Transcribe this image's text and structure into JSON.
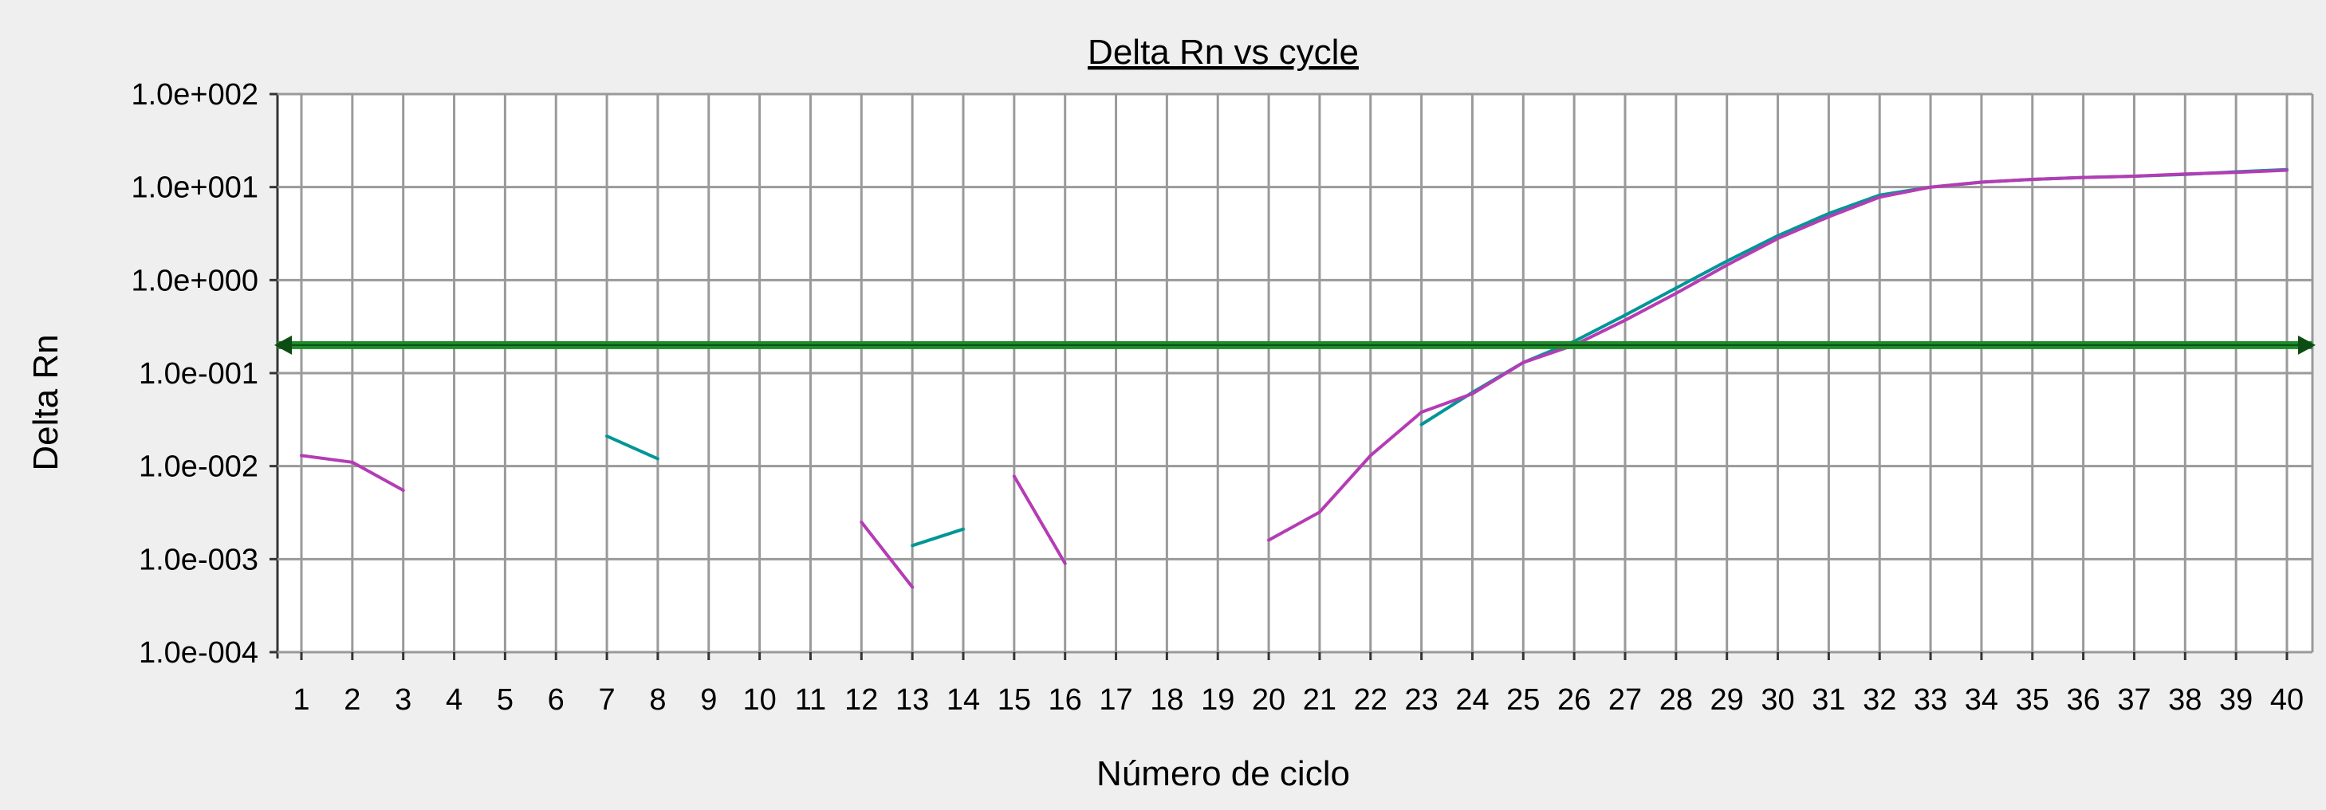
{
  "chart_data": {
    "type": "line",
    "title": "Delta Rn vs cycle",
    "xlabel": "Número de ciclo",
    "ylabel": "Delta Rn",
    "y_scale": "log",
    "ylim": [
      0.0001,
      100
    ],
    "xlim": [
      1,
      40
    ],
    "grid": true,
    "x_ticks": [
      "1",
      "2",
      "3",
      "4",
      "5",
      "6",
      "7",
      "8",
      "9",
      "10",
      "11",
      "12",
      "13",
      "14",
      "15",
      "16",
      "17",
      "18",
      "19",
      "20",
      "21",
      "22",
      "23",
      "24",
      "25",
      "26",
      "27",
      "28",
      "29",
      "30",
      "31",
      "32",
      "33",
      "34",
      "35",
      "36",
      "37",
      "38",
      "39",
      "40"
    ],
    "y_ticks": [
      {
        "value": 100,
        "label": "1.0e+002"
      },
      {
        "value": 10,
        "label": "1.0e+001"
      },
      {
        "value": 1,
        "label": "1.0e+000"
      },
      {
        "value": 0.1,
        "label": "1.0e-001"
      },
      {
        "value": 0.01,
        "label": "1.0e-002"
      },
      {
        "value": 0.001,
        "label": "1.0e-003"
      },
      {
        "value": 0.0001,
        "label": "1.0e-004"
      }
    ],
    "threshold": {
      "value": 0.2,
      "color": "#1e8c2a"
    },
    "series": [
      {
        "color": "#009696",
        "segments": [
          [
            [
              7,
              0.021
            ],
            [
              8,
              0.012
            ]
          ],
          [
            [
              13,
              0.0014
            ],
            [
              14,
              0.0021
            ]
          ],
          [
            [
              23,
              0.028
            ],
            [
              24,
              0.062
            ],
            [
              25,
              0.13
            ],
            [
              26,
              0.22
            ],
            [
              27,
              0.42
            ],
            [
              28,
              0.82
            ],
            [
              29,
              1.6
            ],
            [
              30,
              3.0
            ],
            [
              31,
              5.2
            ],
            [
              32,
              8.2
            ],
            [
              33,
              10.0
            ],
            [
              34,
              11.3
            ],
            [
              35,
              12.1
            ],
            [
              36,
              12.7
            ],
            [
              37,
              13.1
            ],
            [
              38,
              13.7
            ],
            [
              39,
              14.6
            ],
            [
              40,
              15.4
            ]
          ]
        ]
      },
      {
        "color": "#b43cb4",
        "segments": [
          [
            [
              1,
              0.013
            ],
            [
              2,
              0.011
            ],
            [
              3,
              0.0055
            ]
          ],
          [
            [
              12,
              0.0025
            ],
            [
              13,
              0.0005
            ]
          ],
          [
            [
              15,
              0.0078
            ],
            [
              16,
              0.0009
            ]
          ],
          [
            [
              20,
              0.0016
            ],
            [
              21,
              0.0032
            ],
            [
              22,
              0.013
            ],
            [
              23,
              0.038
            ],
            [
              24,
              0.06
            ],
            [
              25,
              0.13
            ],
            [
              26,
              0.2
            ],
            [
              27,
              0.37
            ],
            [
              28,
              0.72
            ],
            [
              29,
              1.45
            ],
            [
              30,
              2.8
            ],
            [
              31,
              4.8
            ],
            [
              32,
              7.8
            ],
            [
              33,
              10.0
            ],
            [
              34,
              11.3
            ],
            [
              35,
              12.1
            ],
            [
              36,
              12.7
            ],
            [
              37,
              13.1
            ],
            [
              38,
              13.8
            ],
            [
              39,
              14.4
            ],
            [
              40,
              15.2
            ]
          ]
        ]
      }
    ]
  }
}
